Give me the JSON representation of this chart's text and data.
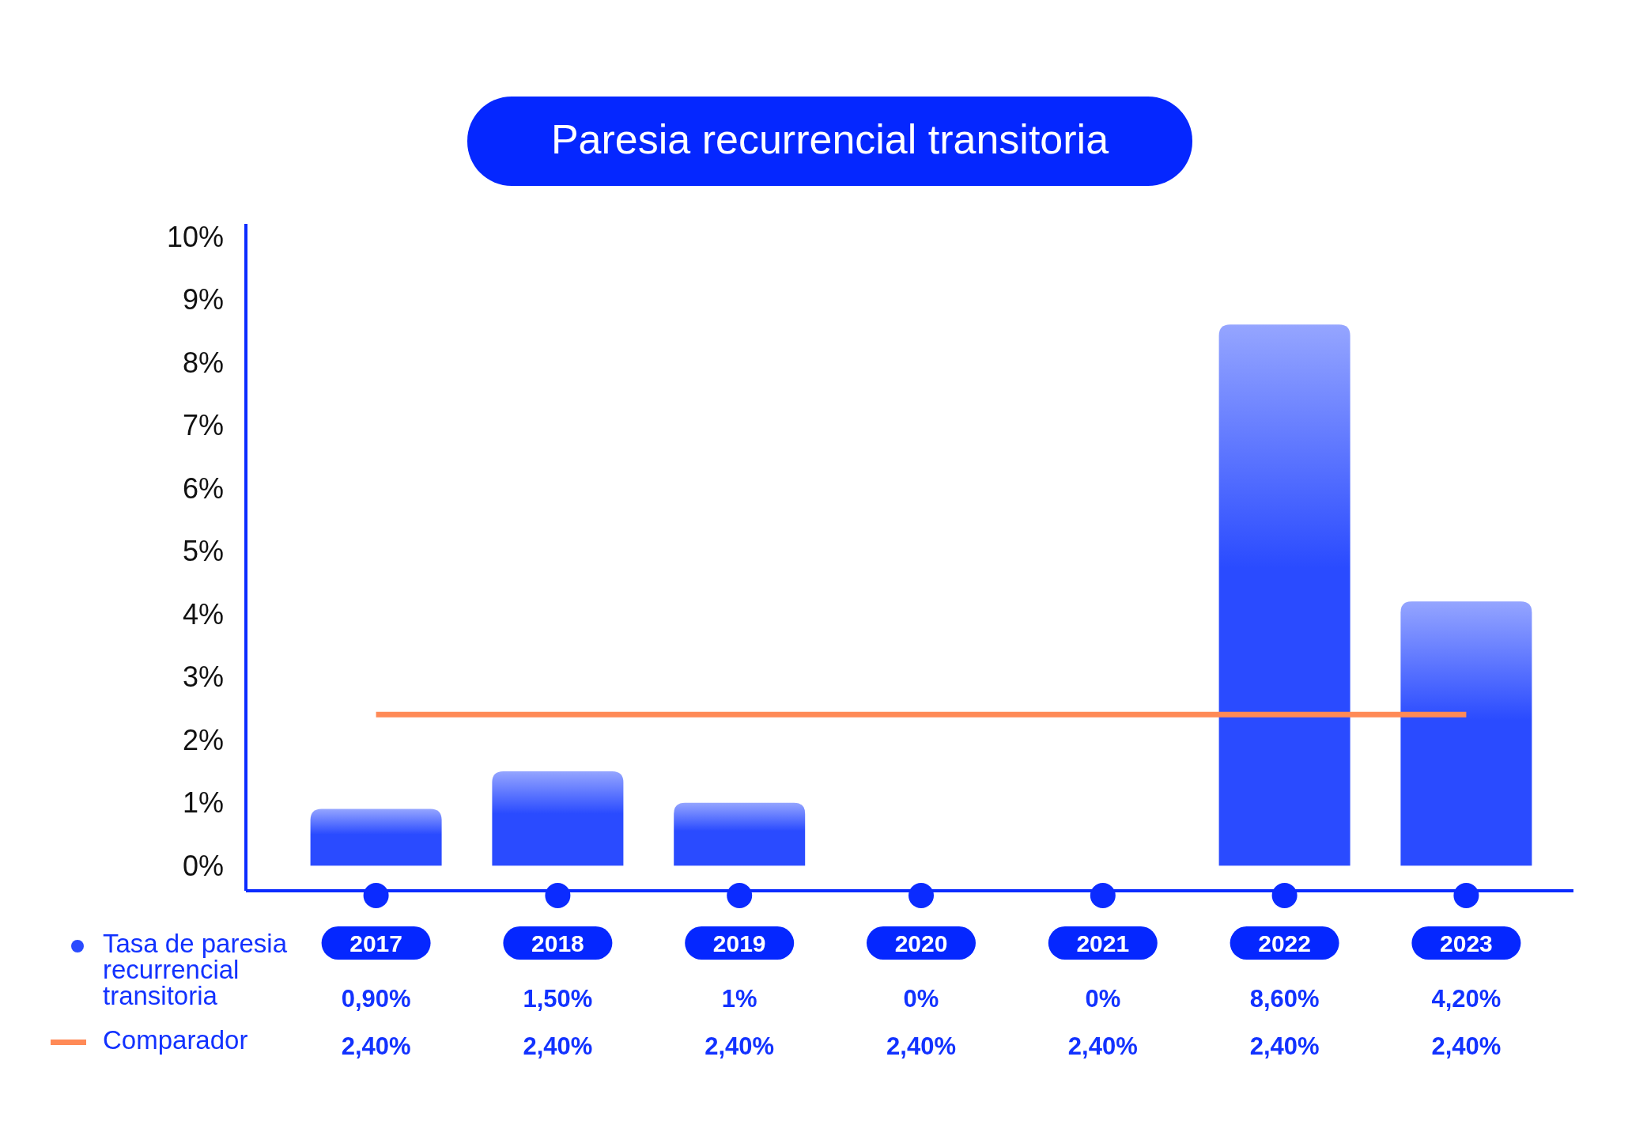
{
  "chart_data": {
    "type": "bar",
    "title": "Paresia recurrencial transitoria",
    "categories": [
      "2017",
      "2018",
      "2019",
      "2020",
      "2021",
      "2022",
      "2023"
    ],
    "series": [
      {
        "name": "Tasa de paresia recurrencial transitoria",
        "color": "#2a4bff",
        "values": [
          0.9,
          1.5,
          1,
          0,
          0,
          8.6,
          4.2
        ],
        "value_labels": [
          "0,90%",
          "1,50%",
          "1%",
          "0%",
          "0%",
          "8,60%",
          "4,20%"
        ]
      },
      {
        "name": "Comparador",
        "type": "line",
        "color": "#ff8a57",
        "values": [
          2.4,
          2.4,
          2.4,
          2.4,
          2.4,
          2.4,
          2.4
        ],
        "value_labels": [
          "2,40%",
          "2,40%",
          "2,40%",
          "2,40%",
          "2,40%",
          "2,40%",
          "2,40%"
        ]
      }
    ],
    "ylim": [
      -0.4,
      10.2
    ],
    "yticks": [
      {
        "value": 0,
        "label": "0%"
      },
      {
        "value": 1,
        "label": "1%"
      },
      {
        "value": 2,
        "label": "2%"
      },
      {
        "value": 3,
        "label": "3%"
      },
      {
        "value": 4,
        "label": "4%"
      },
      {
        "value": 5,
        "label": "5%"
      },
      {
        "value": 6,
        "label": "6%"
      },
      {
        "value": 7,
        "label": "7%"
      },
      {
        "value": 8,
        "label": "8%"
      },
      {
        "value": 9,
        "label": "9%"
      },
      {
        "value": 10,
        "label": "10%"
      }
    ],
    "grid": false,
    "legend": "bottom left"
  }
}
